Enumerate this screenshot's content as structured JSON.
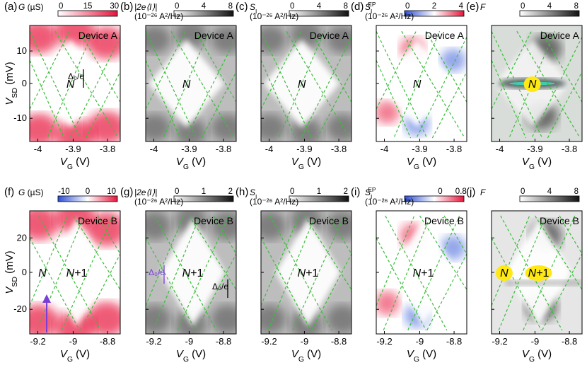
{
  "rows": [
    {
      "device": "Device A",
      "x_ticks": [
        "-4",
        "-3.9",
        "-3.8"
      ],
      "y_ticks": [
        "10",
        "0",
        "-10"
      ],
      "panels": [
        {
          "letter": "(a)",
          "cb_label": "G (µS)",
          "cb_unit": "",
          "cb_ticks": [
            "0",
            "15",
            "30"
          ],
          "cmap": "white-red",
          "charges": [
            "N"
          ]
        },
        {
          "letter": "(b)",
          "cb_label": "|2e⟨I⟩|",
          "cb_unit": "(10⁻²⁶ A²/Hz)",
          "cb_ticks": [
            "0",
            "4",
            "8"
          ],
          "cmap": "white-black",
          "charges": [
            "N"
          ]
        },
        {
          "letter": "(c)",
          "cb_label": "S_I",
          "cb_unit": "(10⁻²⁶ A²/Hz)",
          "cb_ticks": [
            "0",
            "4",
            "8"
          ],
          "cmap": "white-black",
          "charges": [
            "N"
          ]
        },
        {
          "letter": "(d)",
          "cb_label": "S_I^EP",
          "cb_unit": "(10⁻²⁶ A²/Hz)",
          "cb_ticks": [
            "0",
            "2",
            "4"
          ],
          "cmap": "blue-white-red",
          "charges": [
            "N"
          ]
        },
        {
          "letter": "(e)",
          "cb_label": "F",
          "cb_unit": "",
          "cb_ticks": [
            "0",
            "4",
            "8"
          ],
          "cmap": "white-black",
          "charges": [
            "N"
          ]
        }
      ]
    },
    {
      "device": "Device B",
      "x_ticks": [
        "-9.2",
        "-9",
        "-8.8"
      ],
      "y_ticks": [
        "20",
        "0",
        "-20"
      ],
      "panels": [
        {
          "letter": "(f)",
          "cb_label": "G (µS)",
          "cb_unit": "",
          "cb_ticks": [
            "-10",
            "0",
            "10"
          ],
          "cmap": "blue-white-red",
          "charges": [
            "N",
            "N+1"
          ]
        },
        {
          "letter": "(g)",
          "cb_label": "|2e⟨I⟩|",
          "cb_unit": "(10⁻²⁶ A²/Hz)",
          "cb_ticks": [
            "0",
            "1",
            "2"
          ],
          "cmap": "white-black",
          "charges": [
            "N+1"
          ]
        },
        {
          "letter": "(h)",
          "cb_label": "S_I",
          "cb_unit": "(10⁻²⁶ A²/Hz)",
          "cb_ticks": [
            "0",
            "1",
            "2"
          ],
          "cmap": "white-black",
          "charges": [
            "N+1"
          ]
        },
        {
          "letter": "(i)",
          "cb_label": "S_I^EP",
          "cb_unit": "(10⁻²⁶ A²/Hz)",
          "cb_ticks": [
            "0",
            "0.8"
          ],
          "cmap": "blue-white-red",
          "charges": [
            "N+1"
          ]
        },
        {
          "letter": "(j)",
          "cb_label": "F",
          "cb_unit": "",
          "cb_ticks": [
            "0",
            "4",
            "8"
          ],
          "cmap": "white-black",
          "charges": [
            "N",
            "N+1"
          ]
        }
      ]
    }
  ],
  "axis": {
    "x_label": "V_G (V)",
    "y_label": "V_SD (mV)"
  },
  "annotations": {
    "delta0_a": "Δ₀/e",
    "delta0_g_purple": "Δ₀/e",
    "delta0_g_black": "Δ₀/e"
  },
  "colors": {
    "diamond_line": "#3cbd3c",
    "red": "#e8143c",
    "blue": "#3a5fd8",
    "black": "#111111",
    "yellow": "#ffe814",
    "purple": "#7b3fd6"
  }
}
